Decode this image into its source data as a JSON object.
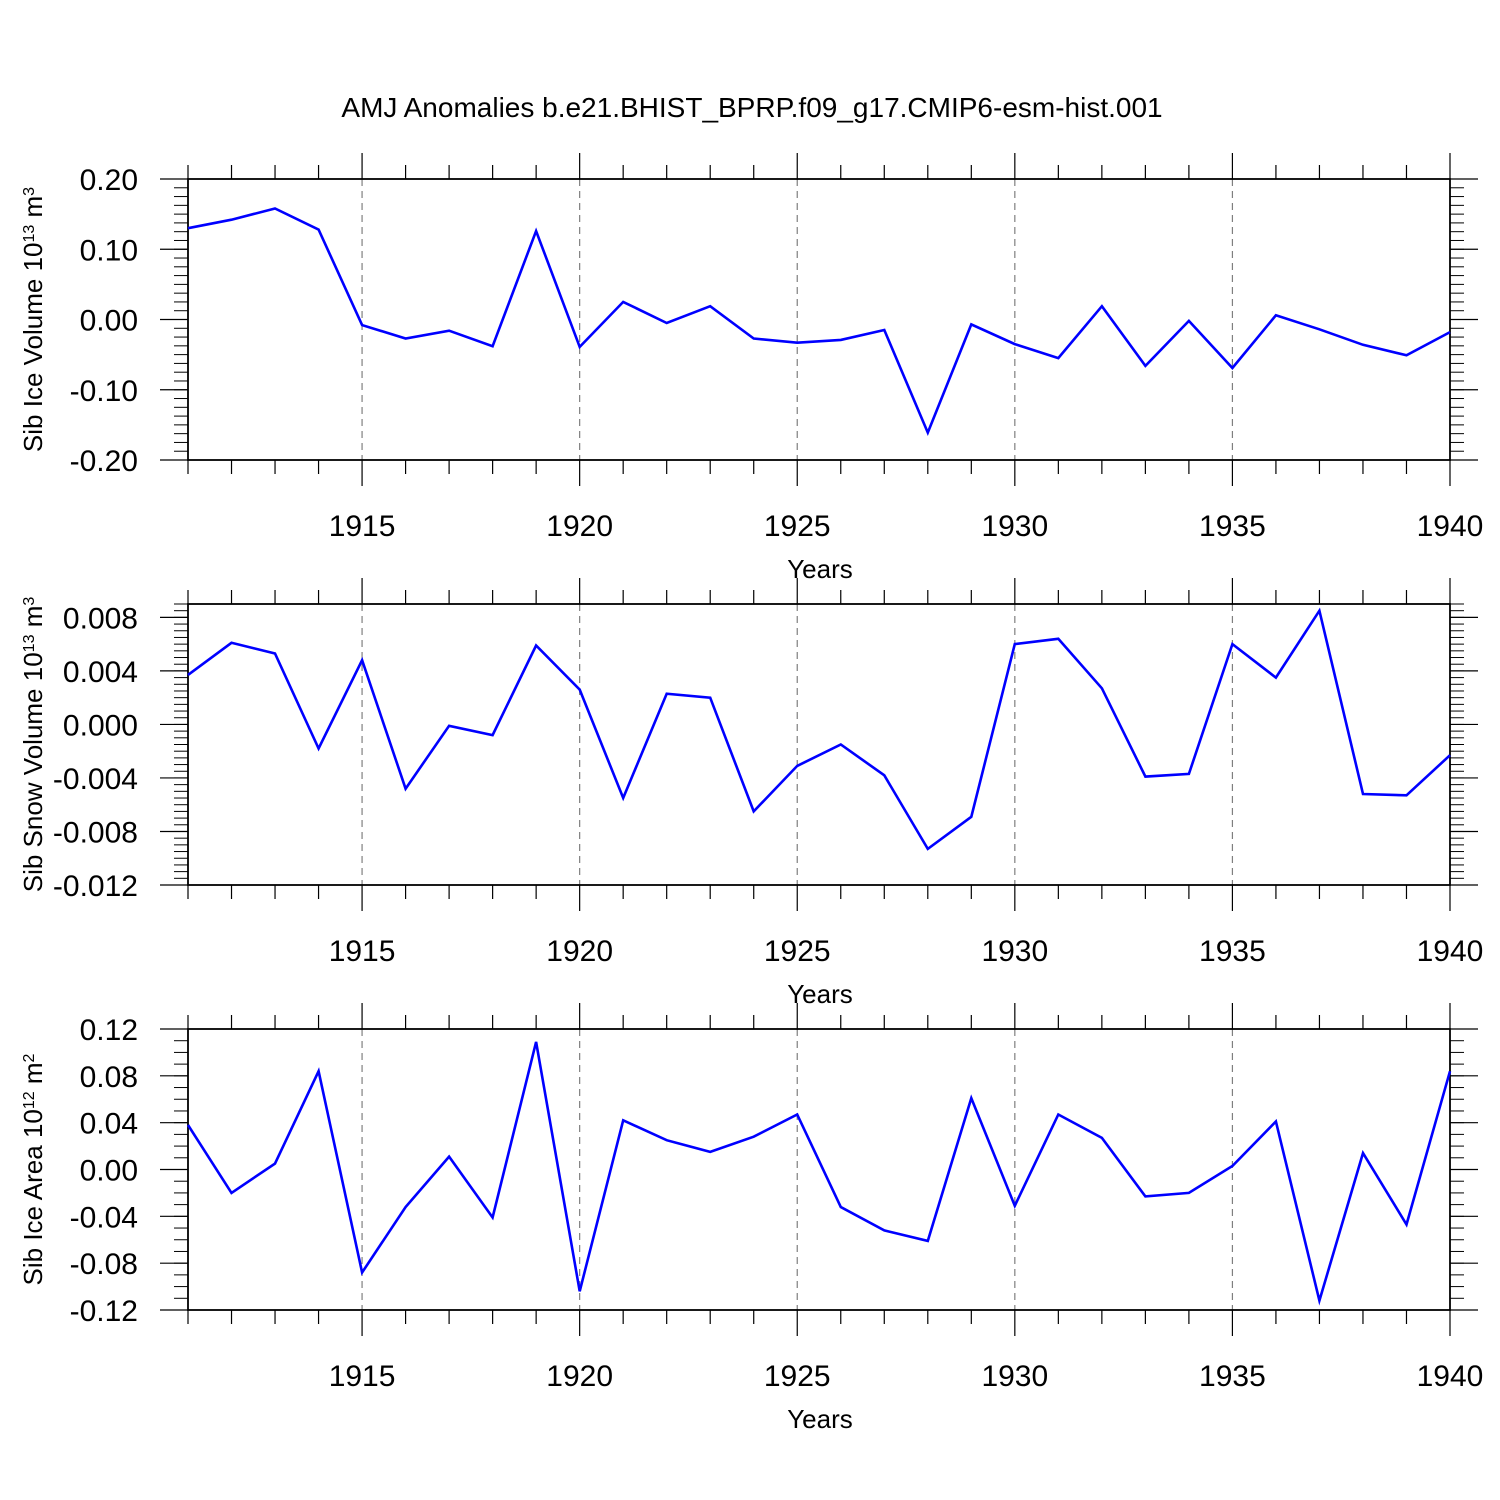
{
  "title": "AMJ Anomalies b.e21.BHIST_BPRP.f09_g17.CMIP6-esm-hist.001",
  "chart_data": [
    {
      "type": "line",
      "ylabel": {
        "main": "Sib Ice Volume 10",
        "exp": "13",
        "unit": " m",
        "unit_exp": "3"
      },
      "xlabel": "Years",
      "xlim": [
        1911,
        1940
      ],
      "ylim": [
        -0.2,
        0.2
      ],
      "y_ticks": [
        "0.20",
        "0.10",
        "0.00",
        "-0.10",
        "-0.20"
      ],
      "y_tick_values": [
        0.2,
        0.1,
        0.0,
        -0.1,
        -0.2
      ],
      "x_ticks": [
        "1915",
        "1920",
        "1925",
        "1930",
        "1935",
        "1940"
      ],
      "x_tick_values": [
        1915,
        1920,
        1925,
        1930,
        1935,
        1940
      ],
      "grid": "vertical dashed at labeled years",
      "color": "#0000ff",
      "x": [
        1911,
        1912,
        1913,
        1914,
        1915,
        1916,
        1917,
        1918,
        1919,
        1920,
        1921,
        1922,
        1923,
        1924,
        1925,
        1926,
        1927,
        1928,
        1929,
        1930,
        1931,
        1932,
        1933,
        1934,
        1935,
        1936,
        1937,
        1938,
        1939,
        1940
      ],
      "values": [
        0.13,
        0.142,
        0.158,
        0.128,
        -0.008,
        -0.027,
        -0.016,
        -0.038,
        0.126,
        -0.039,
        0.025,
        -0.005,
        0.019,
        -0.027,
        -0.033,
        -0.029,
        -0.015,
        -0.161,
        -0.007,
        -0.035,
        -0.055,
        0.019,
        -0.066,
        -0.002,
        -0.069,
        0.006,
        -0.014,
        -0.036,
        -0.051,
        -0.018
      ]
    },
    {
      "type": "line",
      "ylabel": {
        "main": "Sib Snow Volume 10",
        "exp": "13",
        "unit": " m",
        "unit_exp": "3"
      },
      "xlabel": "Years",
      "xlim": [
        1911,
        1940
      ],
      "ylim": [
        -0.012,
        0.009
      ],
      "y_ticks": [
        "0.008",
        "0.004",
        "0.000",
        "-0.004",
        "-0.008",
        "-0.012"
      ],
      "y_tick_values": [
        0.008,
        0.004,
        0.0,
        -0.004,
        -0.008,
        -0.012
      ],
      "x_ticks": [
        "1915",
        "1920",
        "1925",
        "1930",
        "1935",
        "1940"
      ],
      "x_tick_values": [
        1915,
        1920,
        1925,
        1930,
        1935,
        1940
      ],
      "grid": "vertical dashed at labeled years",
      "color": "#0000ff",
      "x": [
        1911,
        1912,
        1913,
        1914,
        1915,
        1916,
        1917,
        1918,
        1919,
        1920,
        1921,
        1922,
        1923,
        1924,
        1925,
        1926,
        1927,
        1928,
        1929,
        1930,
        1931,
        1932,
        1933,
        1934,
        1935,
        1936,
        1937,
        1938,
        1939,
        1940
      ],
      "values": [
        0.0037,
        0.0061,
        0.0053,
        -0.0018,
        0.0048,
        -0.0048,
        -0.0001,
        -0.0008,
        0.0059,
        0.0026,
        -0.0055,
        0.0023,
        0.002,
        -0.0065,
        -0.0031,
        -0.0015,
        -0.0038,
        -0.0093,
        -0.0069,
        0.006,
        0.0064,
        0.0027,
        -0.0039,
        -0.0037,
        0.006,
        0.0035,
        0.0085,
        -0.0052,
        -0.0053,
        -0.0023
      ]
    },
    {
      "type": "line",
      "ylabel": {
        "main": "Sib Ice Area 10",
        "exp": "12",
        "unit": " m",
        "unit_exp": "2"
      },
      "xlabel": "Years",
      "xlim": [
        1911,
        1940
      ],
      "ylim": [
        -0.12,
        0.12
      ],
      "y_ticks": [
        "0.12",
        "0.08",
        "0.04",
        "0.00",
        "-0.04",
        "-0.08",
        "-0.12"
      ],
      "y_tick_values": [
        0.12,
        0.08,
        0.04,
        0.0,
        -0.04,
        -0.08,
        -0.12
      ],
      "x_ticks": [
        "1915",
        "1920",
        "1925",
        "1930",
        "1935",
        "1940"
      ],
      "x_tick_values": [
        1915,
        1920,
        1925,
        1930,
        1935,
        1940
      ],
      "grid": "vertical dashed at labeled years",
      "color": "#0000ff",
      "x": [
        1911,
        1912,
        1913,
        1914,
        1915,
        1916,
        1917,
        1918,
        1919,
        1920,
        1921,
        1922,
        1923,
        1924,
        1925,
        1926,
        1927,
        1928,
        1929,
        1930,
        1931,
        1932,
        1933,
        1934,
        1935,
        1936,
        1937,
        1938,
        1939,
        1940
      ],
      "values": [
        0.038,
        -0.02,
        0.005,
        0.084,
        -0.088,
        -0.032,
        0.011,
        -0.041,
        0.109,
        -0.104,
        0.042,
        0.025,
        0.015,
        0.028,
        0.047,
        -0.032,
        -0.052,
        -0.061,
        0.061,
        -0.031,
        0.047,
        0.027,
        -0.023,
        -0.02,
        0.003,
        0.041,
        -0.112,
        0.014,
        -0.047,
        0.084
      ]
    }
  ]
}
